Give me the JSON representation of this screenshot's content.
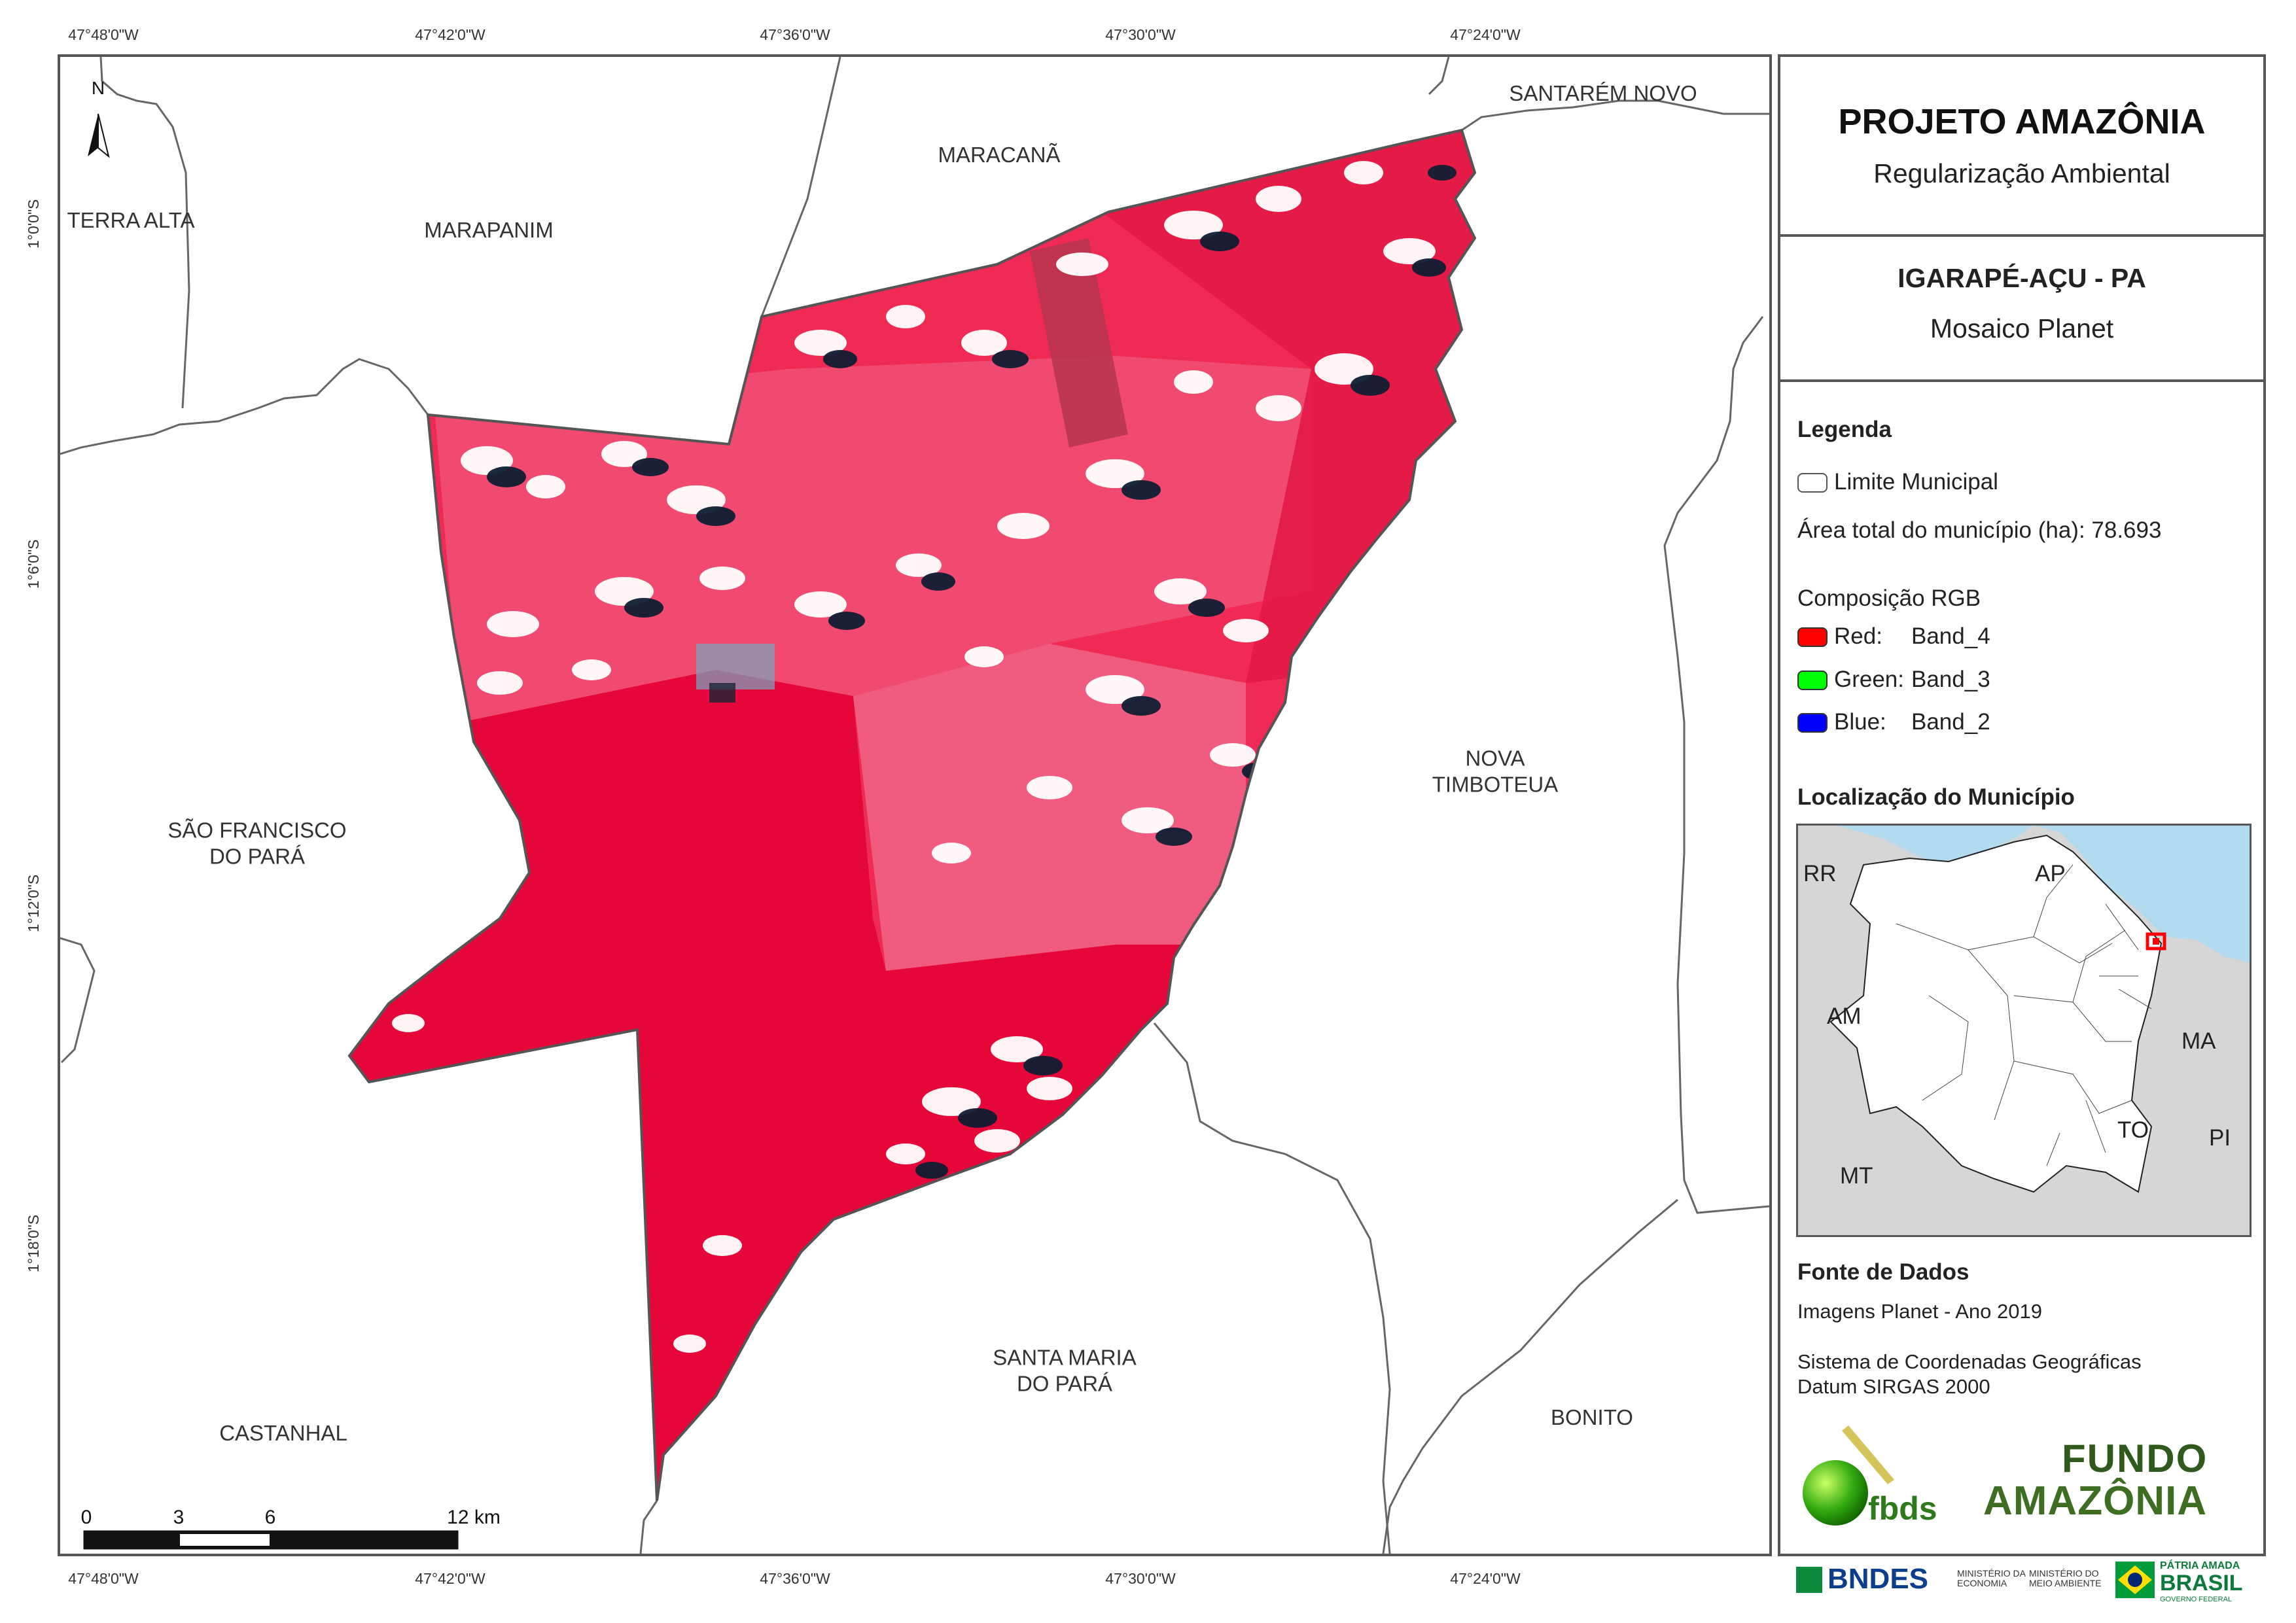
{
  "coordinates": {
    "longitudes": [
      "47°48'0\"W",
      "47°42'0\"W",
      "47°36'0\"W",
      "47°30'0\"W",
      "47°24'0\"W"
    ],
    "latitudes": [
      "1°0'0\"S",
      "1°6'0\"S",
      "1°12'0\"S",
      "1°18'0\"S"
    ]
  },
  "north_arrow": "N",
  "municipalities": {
    "santarem_novo": "SANTARÉM NOVO",
    "maracana": "MARACANÃ",
    "terra_alta": "TERRA ALTA",
    "marapanim": "MARAPANIM",
    "sao_francisco": "SÃO FRANCISCO\nDO PARÁ",
    "nova_timboteua": "NOVA\nTIMBOTEUA",
    "santa_maria": "SANTA MARIA\nDO PARÁ",
    "castanhal": "CASTANHAL",
    "bonito": "BONITO"
  },
  "scale_bar": {
    "labels": [
      "0",
      "3",
      "6",
      "12 km"
    ]
  },
  "panel": {
    "project_title": "PROJETO AMAZÔNIA",
    "project_subtitle": "Regularização Ambiental",
    "municipality_title": "IGARAPÉ-AÇU - PA",
    "mosaic_label": "Mosaico Planet",
    "legend": {
      "title": "Legenda",
      "limit_label": "Limite Municipal",
      "area_label": "Área total do município (ha): 78.693",
      "rgb_title": "Composição RGB",
      "bands": [
        {
          "channel": "Red:",
          "band": "Band_4",
          "color": "#ff0000"
        },
        {
          "channel": "Green:",
          "band": "Band_3",
          "color": "#00ff00"
        },
        {
          "channel": "Blue:",
          "band": "Band_2",
          "color": "#0000ff"
        }
      ]
    },
    "location": {
      "title": "Localização do Município",
      "states": [
        "RR",
        "AP",
        "AM",
        "MA",
        "TO",
        "PI",
        "MT"
      ]
    },
    "sources": {
      "title": "Fonte de Dados",
      "line1": "Imagens Planet - Ano 2019",
      "line2": "Sistema de Coordenadas Geográficas",
      "line3": "Datum SIRGAS 2000"
    },
    "logos": {
      "fbds": "fbds",
      "fundo_line1": "FUNDO",
      "fundo_line2": "AMAZÔNIA",
      "bndes": "BNDES",
      "min_economia": "MINISTÉRIO DA\nECONOMIA",
      "min_meio": "MINISTÉRIO DO\nMEIO AMBIENTE",
      "patria": "PÁTRIA AMADA",
      "brasil": "BRASIL",
      "governo": "GOVERNO FEDERAL"
    }
  },
  "colors": {
    "land_red": "#e8103a",
    "land_pink": "#f0607e",
    "cloud": "#ffffff",
    "shadow": "#102036",
    "ocean": "#b3dbef",
    "gray_land": "#d8d8d8"
  }
}
